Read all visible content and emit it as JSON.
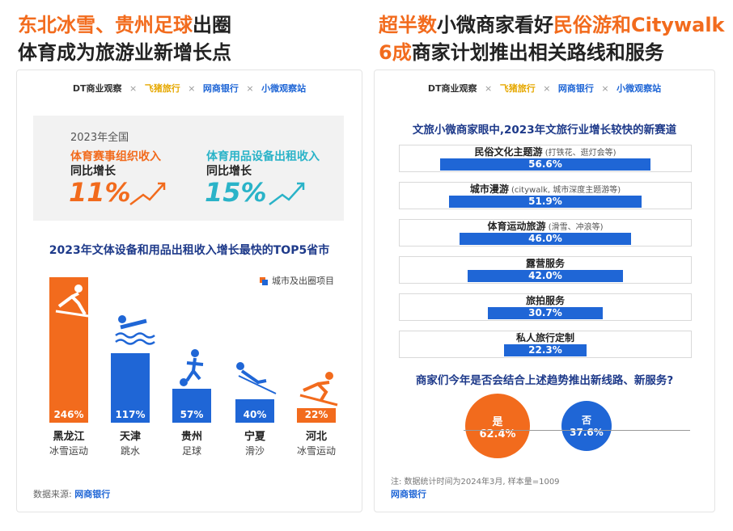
{
  "left": {
    "headline_line1_a": "东北冰雪、贵州足球",
    "headline_line1_b": "出圈",
    "headline_line2": "体育成为旅游业新增长点",
    "logos": [
      "DT商业观察",
      "飞猪旅行",
      "网商银行",
      "小微观察站"
    ],
    "logo_sep": "×",
    "panel": {
      "year": "2023年全国",
      "metrics": [
        {
          "title": "体育赛事组织收入",
          "sub": "同比增长",
          "value": "11%",
          "color": "#f26b1d"
        },
        {
          "title": "体育用品设备出租收入",
          "sub": "同比增长",
          "value": "15%",
          "color": "#2ab3c8"
        }
      ]
    },
    "chart_title": "2023年文体设备和用品出租收入增长最快的TOP5省市",
    "legend": "城市及出圈项目",
    "source_prefix": "数据来源:",
    "source_name": "网商银行"
  },
  "right": {
    "headline_line1_a": "超半数",
    "headline_line1_b": "小微商家看好",
    "headline_line1_c": "民俗游和Citywalk",
    "headline_line2_a": "6成",
    "headline_line2_b": "商家计划推出相关路线和服务",
    "chart_title": "文旅小微商家眼中,2023年文旅行业增长较快的新赛道",
    "question": "商家们今年是否会结合上述趋势推出新线路、新服务?",
    "note": "注: 数据统计时间为2024年3月, 样本量=1009",
    "source_name": "网商银行"
  },
  "chart_data": [
    {
      "type": "bar",
      "title": "2023年文体设备和用品出租收入增长最快的TOP5省市",
      "categories": [
        "黑龙江",
        "天津",
        "贵州",
        "宁夏",
        "河北"
      ],
      "items": [
        "冰雪运动",
        "跳水",
        "足球",
        "滑沙",
        "冰雪运动"
      ],
      "values": [
        246,
        117,
        57,
        40,
        22
      ],
      "value_labels": [
        "246%",
        "117%",
        "57%",
        "40%",
        "22%"
      ],
      "colors": [
        "#f26b1d",
        "#1f66d6",
        "#1f66d6",
        "#1f66d6",
        "#f26b1d"
      ],
      "legend": "城市及出圈项目"
    },
    {
      "type": "bar",
      "orientation": "horizontal",
      "title": "文旅小微商家眼中,2023年文旅行业增长较快的新赛道",
      "categories": [
        {
          "name": "民俗文化主题游",
          "detail": "(打铁花、逛灯会等)"
        },
        {
          "name": "城市漫游",
          "detail": "(citywalk, 城市深度主题游等)"
        },
        {
          "name": "体育运动旅游",
          "detail": "(滑雪、冲浪等)"
        },
        {
          "name": "露营服务",
          "detail": ""
        },
        {
          "name": "旅拍服务",
          "detail": ""
        },
        {
          "name": "私人旅行定制",
          "detail": ""
        }
      ],
      "values": [
        56.6,
        51.9,
        46.0,
        42.0,
        30.7,
        22.3
      ],
      "value_labels": [
        "56.6%",
        "51.9%",
        "46.0%",
        "42.0%",
        "30.7%",
        "22.3%"
      ],
      "color": "#1f66d6"
    },
    {
      "type": "bubble",
      "title": "商家们今年是否会结合上述趋势推出新线路、新服务?",
      "categories": [
        "是",
        "否"
      ],
      "values": [
        62.4,
        37.6
      ],
      "value_labels": [
        "62.4%",
        "37.6%"
      ],
      "colors": [
        "#f26b1d",
        "#1f66d6"
      ]
    }
  ]
}
